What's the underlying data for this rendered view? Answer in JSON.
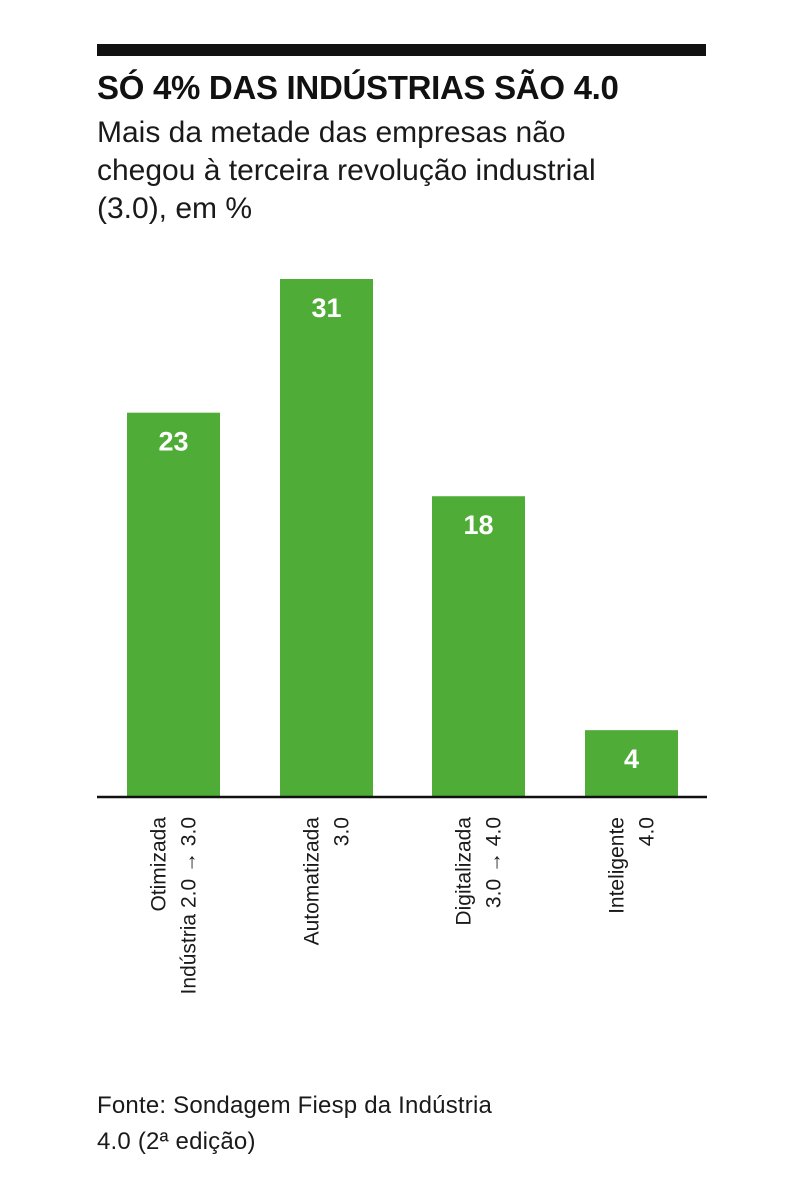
{
  "header": {
    "title": "SÓ 4% DAS INDÚSTRIAS SÃO 4.0",
    "subtitle": "Mais da metade das empresas não chegou à terceira revolução industrial (3.0), em %"
  },
  "footer": {
    "source": "Fonte: Sondagem Fiesp da Indústria 4.0 (2ª edição)"
  },
  "colors": {
    "bar": "#4fad37",
    "axis": "#111111",
    "rule": "#111111"
  },
  "chart_data": {
    "type": "bar",
    "title": "SÓ 4% DAS INDÚSTRIAS SÃO 4.0",
    "subtitle": "Mais da metade das empresas não chegou à terceira revolução industrial (3.0), em %",
    "categories": [
      [
        "Otimizada",
        "Indústria 2.0 → 3.0"
      ],
      [
        "Automatizada",
        "3.0"
      ],
      [
        "Digitalizada",
        "3.0 → 4.0"
      ],
      [
        "Inteligente",
        "4.0"
      ]
    ],
    "values": [
      23,
      31,
      18,
      4
    ],
    "ylim": [
      0,
      31
    ],
    "grid": false,
    "legend": "none",
    "xlabel": "",
    "ylabel": ""
  }
}
